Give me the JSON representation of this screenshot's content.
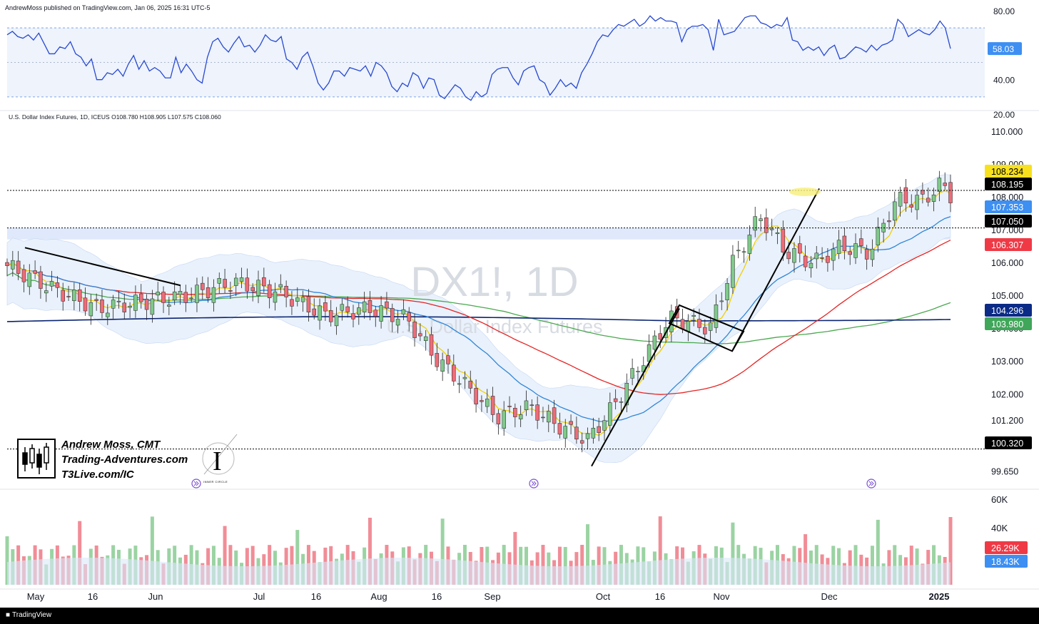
{
  "header": {
    "published": "AndrewMoss published on TradingView.com, Jan 06, 2025 16:31 UTC-5",
    "legend": "U.S. Dollar Index Futures, 1D, ICEUS  O108.780  H108.905  L107.575  C108.060"
  },
  "watermark": {
    "symbol": "DX1!, 1D",
    "name": "U.S. Dollar Index Futures"
  },
  "branding": {
    "line1": "Andrew Moss, CMT",
    "line2": "Trading-Adventures.com",
    "line3": "T3Live.com/IC",
    "ic_caption": "INNER CIRCLE",
    "ic_letter": "I"
  },
  "footer": {
    "logo": "TradingView"
  },
  "colors": {
    "up": "#7fc98a",
    "down": "#ee6c78",
    "rsi": "#2849d0",
    "ema_fast": "#f0d000",
    "ema_mid": "#2f86d8",
    "ema_red": "#e52525",
    "ema_navy": "#0b2472",
    "ema_green": "#4aa84f",
    "label_yellow": "#f7e01e",
    "label_blue": "#3d8ff2",
    "label_red": "#ef3a46",
    "label_navy": "#0b2b86",
    "label_green": "#40a659"
  },
  "chart_data": [
    {
      "type": "line",
      "title": "RSI",
      "ylim": [
        20,
        80
      ],
      "y_ticks": [
        "80.00",
        "40.00",
        "20.00"
      ],
      "bands": [
        70,
        30
      ],
      "last_label": "58.03",
      "values": [
        66,
        68,
        65,
        64,
        66,
        63,
        67,
        61,
        55,
        55,
        59,
        58,
        62,
        55,
        53,
        48,
        52,
        40,
        40,
        44,
        43,
        46,
        42,
        49,
        54,
        46,
        51,
        45,
        47,
        45,
        41,
        41,
        53,
        44,
        49,
        45,
        40,
        38,
        53,
        62,
        64,
        59,
        56,
        61,
        65,
        59,
        60,
        56,
        60,
        66,
        63,
        62,
        65,
        52,
        50,
        46,
        53,
        56,
        48,
        38,
        34,
        38,
        45,
        45,
        42,
        47,
        46,
        45,
        48,
        42,
        50,
        48,
        44,
        36,
        33,
        38,
        36,
        44,
        42,
        35,
        41,
        40,
        31,
        29,
        33,
        37,
        35,
        30,
        28,
        33,
        30,
        32,
        43,
        46,
        47,
        47,
        41,
        37,
        45,
        47,
        48,
        40,
        38,
        31,
        35,
        40,
        36,
        38,
        35,
        44,
        49,
        55,
        62,
        66,
        65,
        69,
        72,
        71,
        73,
        75,
        71,
        73,
        77,
        74,
        76,
        74,
        74,
        73,
        62,
        69,
        71,
        71,
        72,
        69,
        57,
        75,
        66,
        67,
        68,
        72,
        76,
        77,
        77,
        73,
        72,
        70,
        72,
        71,
        76,
        63,
        62,
        57,
        59,
        57,
        59,
        54,
        58,
        60,
        52,
        53,
        56,
        59,
        58,
        56,
        60,
        57,
        60,
        61,
        63,
        75,
        72,
        65,
        67,
        69,
        67,
        66,
        69,
        74,
        70,
        58
      ]
    },
    {
      "type": "candlestick",
      "title": "U.S. Dollar Index Futures, 1D, ICEUS",
      "ylim": [
        99.4,
        110.3
      ],
      "y_ticks": [
        "110.000",
        "109.000",
        "108.000",
        "107.000",
        "106.000",
        "105.000",
        "104.000",
        "103.000",
        "102.000",
        "101.200",
        "99.650"
      ],
      "x_ticks": [
        "May",
        "16",
        "Jun",
        "Jul",
        "16",
        "Aug",
        "16",
        "Sep",
        "Oct",
        "16",
        "Nov",
        "Dec",
        "2025"
      ],
      "price_labels": [
        {
          "text": "108.234",
          "kind": "ema_fast"
        },
        {
          "text": "108.195",
          "kind": "level"
        },
        {
          "text": "107.353",
          "kind": "ema_mid"
        },
        {
          "text": "107.050",
          "kind": "level"
        },
        {
          "text": "106.307",
          "kind": "ema_red"
        },
        {
          "text": "104.296",
          "kind": "ema_navy"
        },
        {
          "text": "103.980",
          "kind": "ema_green"
        },
        {
          "text": "100.320",
          "kind": "level"
        }
      ],
      "horizontal_levels": [
        108.195,
        107.05,
        100.32
      ],
      "ohlc": {
        "open": 108.78,
        "high": 108.905,
        "low": 107.575,
        "close": 108.06
      }
    },
    {
      "type": "bar",
      "title": "Volume",
      "ylim": [
        0,
        64000
      ],
      "y_ticks": [
        "60K",
        "40K"
      ],
      "labels": [
        {
          "text": "26.29K",
          "kind": "down"
        },
        {
          "text": "18.43K",
          "kind": "ema_mid"
        }
      ]
    }
  ]
}
